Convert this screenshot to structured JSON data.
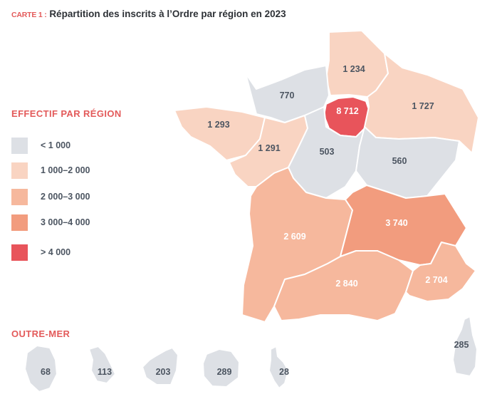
{
  "title": {
    "tag": "CARTE 1 :",
    "text": "Répartition des inscrits à l’Ordre par région en 2023"
  },
  "legend": {
    "title": "EFFECTIF PAR RÉGION",
    "items": [
      {
        "label": "< 1 000",
        "color": "#dde0e5"
      },
      {
        "label": "1 000–2 000",
        "color": "#f9d4c2"
      },
      {
        "label": "2 000–3 000",
        "color": "#f6b89d"
      },
      {
        "label": "3 000–4 000",
        "color": "#f29c7e"
      },
      {
        "label": "> 4 000",
        "color": "#e8545b"
      }
    ]
  },
  "regions": {
    "hauts_de_france": {
      "value": "1 234",
      "color": "#f9d4c2"
    },
    "normandie": {
      "value": "770",
      "color": "#dde0e5"
    },
    "ile_de_france": {
      "value": "8 712",
      "color": "#e8545b"
    },
    "grand_est": {
      "value": "1 727",
      "color": "#f9d4c2"
    },
    "bretagne": {
      "value": "1 293",
      "color": "#f9d4c2"
    },
    "pays_de_la_loire": {
      "value": "1 291",
      "color": "#f9d4c2"
    },
    "centre_val_de_loire": {
      "value": "503",
      "color": "#dde0e5"
    },
    "bourgogne_franche_comte": {
      "value": "560",
      "color": "#dde0e5"
    },
    "nouvelle_aquitaine": {
      "value": "2 609",
      "color": "#f6b89d"
    },
    "auvergne_rhone_alpes": {
      "value": "3 740",
      "color": "#f29c7e"
    },
    "occitanie": {
      "value": "2 840",
      "color": "#f6b89d"
    },
    "provence_alpes_cote_dazur": {
      "value": "2 704",
      "color": "#f6b89d"
    },
    "corse": {
      "value": "285",
      "color": "#dde0e5"
    }
  },
  "outre_mer": {
    "title": "OUTRE-MER",
    "items": [
      {
        "value": "68",
        "color": "#dde0e5"
      },
      {
        "value": "113",
        "color": "#dde0e5"
      },
      {
        "value": "203",
        "color": "#dde0e5"
      },
      {
        "value": "289",
        "color": "#dde0e5"
      },
      {
        "value": "28",
        "color": "#dde0e5"
      }
    ]
  },
  "label_colors": {
    "dark": "#4c5561",
    "light": "#ffffff"
  }
}
